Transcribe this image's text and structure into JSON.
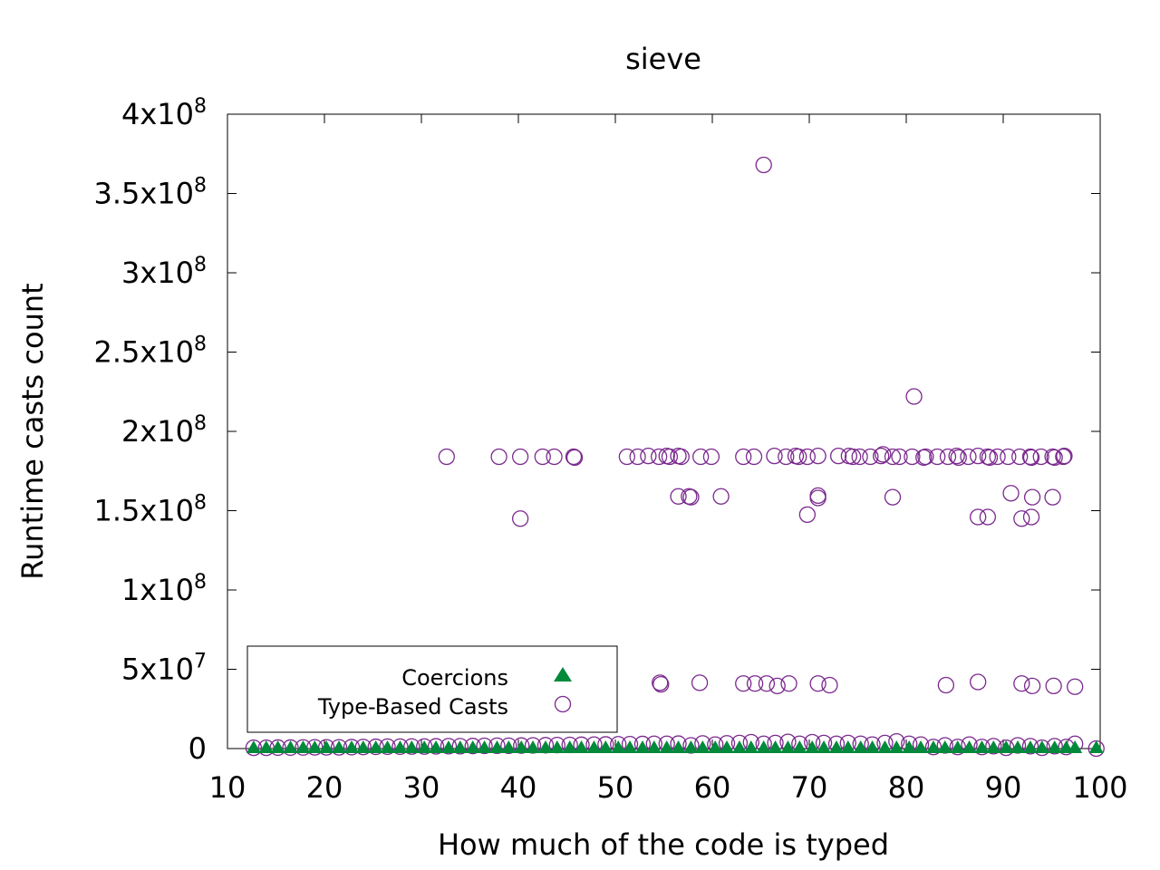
{
  "chart_data": {
    "type": "scatter",
    "title": "sieve",
    "xlabel": "How much of the code is typed",
    "ylabel": "Runtime casts count",
    "xlim": [
      10,
      100
    ],
    "ylim": [
      0,
      400000000
    ],
    "x_ticks": [
      10,
      20,
      30,
      40,
      50,
      60,
      70,
      80,
      90,
      100
    ],
    "y_ticks": [
      {
        "value": 0,
        "base": "0",
        "exp": ""
      },
      {
        "value": 50000000,
        "base": "5x10",
        "exp": "7"
      },
      {
        "value": 100000000,
        "base": "1x10",
        "exp": "8"
      },
      {
        "value": 150000000,
        "base": "1.5x10",
        "exp": "8"
      },
      {
        "value": 200000000,
        "base": "2x10",
        "exp": "8"
      },
      {
        "value": 250000000,
        "base": "2.5x10",
        "exp": "8"
      },
      {
        "value": 300000000,
        "base": "3x10",
        "exp": "8"
      },
      {
        "value": 350000000,
        "base": "3.5x10",
        "exp": "8"
      },
      {
        "value": 400000000,
        "base": "4x10",
        "exp": "8"
      }
    ],
    "grid": false,
    "legend_position": "bottom-left",
    "series": [
      {
        "name": "Coercions",
        "marker": "filled-triangle",
        "color": "#008a3a",
        "points": [
          [
            12.7,
            0
          ],
          [
            14.0,
            0
          ],
          [
            15.2,
            0
          ],
          [
            16.5,
            0
          ],
          [
            17.8,
            0
          ],
          [
            19.0,
            0
          ],
          [
            20.2,
            0
          ],
          [
            21.5,
            0
          ],
          [
            22.8,
            0
          ],
          [
            24.0,
            0
          ],
          [
            25.3,
            0
          ],
          [
            26.5,
            0
          ],
          [
            27.8,
            0
          ],
          [
            29.0,
            0
          ],
          [
            30.3,
            0
          ],
          [
            31.5,
            0
          ],
          [
            32.8,
            0
          ],
          [
            34.0,
            0
          ],
          [
            35.3,
            0
          ],
          [
            36.5,
            0
          ],
          [
            37.8,
            0
          ],
          [
            39.0,
            0
          ],
          [
            40.3,
            0
          ],
          [
            41.5,
            0
          ],
          [
            42.8,
            0
          ],
          [
            44.0,
            0
          ],
          [
            45.3,
            0
          ],
          [
            46.5,
            0
          ],
          [
            47.8,
            0
          ],
          [
            49.0,
            0
          ],
          [
            50.3,
            0
          ],
          [
            51.5,
            0
          ],
          [
            52.8,
            0
          ],
          [
            54.0,
            0
          ],
          [
            55.3,
            0
          ],
          [
            56.5,
            0
          ],
          [
            57.8,
            0
          ],
          [
            59.0,
            0
          ],
          [
            60.3,
            0
          ],
          [
            61.5,
            0
          ],
          [
            62.8,
            0
          ],
          [
            64.0,
            0
          ],
          [
            65.3,
            0
          ],
          [
            66.5,
            0
          ],
          [
            67.8,
            0
          ],
          [
            69.0,
            0
          ],
          [
            70.3,
            0
          ],
          [
            71.5,
            0
          ],
          [
            72.8,
            0
          ],
          [
            74.0,
            0
          ],
          [
            75.3,
            0
          ],
          [
            76.5,
            0
          ],
          [
            77.8,
            0
          ],
          [
            79.0,
            0
          ],
          [
            80.3,
            0
          ],
          [
            81.5,
            0
          ],
          [
            82.8,
            0
          ],
          [
            84.0,
            0
          ],
          [
            85.3,
            0
          ],
          [
            86.5,
            0
          ],
          [
            87.8,
            0
          ],
          [
            89.0,
            0
          ],
          [
            90.3,
            0
          ],
          [
            91.5,
            0
          ],
          [
            92.8,
            0
          ],
          [
            94.0,
            0
          ],
          [
            95.3,
            0
          ],
          [
            96.5,
            0
          ],
          [
            97.4,
            0
          ],
          [
            99.6,
            0
          ]
        ]
      },
      {
        "name": "Type-Based Casts",
        "marker": "open-circle",
        "color": "#7b2a8e",
        "points": [
          [
            32.6,
            184000000
          ],
          [
            38.0,
            184000000
          ],
          [
            40.2,
            184000000
          ],
          [
            42.5,
            184000000
          ],
          [
            43.7,
            184000000
          ],
          [
            45.7,
            184000000
          ],
          [
            45.8,
            183500000
          ],
          [
            51.2,
            184000000
          ],
          [
            52.3,
            184000000
          ],
          [
            53.4,
            184500000
          ],
          [
            54.5,
            184000000
          ],
          [
            55.3,
            184500000
          ],
          [
            55.6,
            184000000
          ],
          [
            56.5,
            184500000
          ],
          [
            56.8,
            184000000
          ],
          [
            58.8,
            184000000
          ],
          [
            59.9,
            184000000
          ],
          [
            63.2,
            184000000
          ],
          [
            64.3,
            184000000
          ],
          [
            66.4,
            184500000
          ],
          [
            67.6,
            184000000
          ],
          [
            68.6,
            184500000
          ],
          [
            68.9,
            184000000
          ],
          [
            69.8,
            184000000
          ],
          [
            70.9,
            184500000
          ],
          [
            73.0,
            184500000
          ],
          [
            74.1,
            184500000
          ],
          [
            74.5,
            184000000
          ],
          [
            75.2,
            184000000
          ],
          [
            76.3,
            184000000
          ],
          [
            77.4,
            184500000
          ],
          [
            77.6,
            185500000
          ],
          [
            78.6,
            184000000
          ],
          [
            79.3,
            184000000
          ],
          [
            80.6,
            184000000
          ],
          [
            81.8,
            183500000
          ],
          [
            82.0,
            184000000
          ],
          [
            83.2,
            184000000
          ],
          [
            84.3,
            184000000
          ],
          [
            85.2,
            184500000
          ],
          [
            85.4,
            183500000
          ],
          [
            86.4,
            184000000
          ],
          [
            87.4,
            184500000
          ],
          [
            88.4,
            184000000
          ],
          [
            88.6,
            183500000
          ],
          [
            89.4,
            184000000
          ],
          [
            90.5,
            184000000
          ],
          [
            91.7,
            184000000
          ],
          [
            92.8,
            184000000
          ],
          [
            92.9,
            183500000
          ],
          [
            93.9,
            184000000
          ],
          [
            95.1,
            184000000
          ],
          [
            95.3,
            183500000
          ],
          [
            96.2,
            184000000
          ],
          [
            96.3,
            184500000
          ],
          [
            40.2,
            145000000
          ],
          [
            56.5,
            159000000
          ],
          [
            57.6,
            159000000
          ],
          [
            57.8,
            158500000
          ],
          [
            60.9,
            159000000
          ],
          [
            69.8,
            147500000
          ],
          [
            70.9,
            159500000
          ],
          [
            70.9,
            158000000
          ],
          [
            78.6,
            158500000
          ],
          [
            87.4,
            146000000
          ],
          [
            88.4,
            146000000
          ],
          [
            90.8,
            161000000
          ],
          [
            91.9,
            145000000
          ],
          [
            92.9,
            146000000
          ],
          [
            93.0,
            158500000
          ],
          [
            95.1,
            158500000
          ],
          [
            65.3,
            368000000
          ],
          [
            80.8,
            222000000
          ],
          [
            54.6,
            41500000
          ],
          [
            54.7,
            40500000
          ],
          [
            58.7,
            41500000
          ],
          [
            63.2,
            41000000
          ],
          [
            64.4,
            41000000
          ],
          [
            65.6,
            41000000
          ],
          [
            66.7,
            39500000
          ],
          [
            67.9,
            41000000
          ],
          [
            70.9,
            41000000
          ],
          [
            72.1,
            40000000
          ],
          [
            84.1,
            40000000
          ],
          [
            87.4,
            42000000
          ],
          [
            91.9,
            41000000
          ],
          [
            93.0,
            39500000
          ],
          [
            95.2,
            39500000
          ],
          [
            97.4,
            39000000
          ],
          [
            12.7,
            500000
          ],
          [
            14.0,
            500000
          ],
          [
            15.2,
            600000
          ],
          [
            16.5,
            600000
          ],
          [
            17.8,
            700000
          ],
          [
            19.0,
            800000
          ],
          [
            20.2,
            800000
          ],
          [
            21.5,
            800000
          ],
          [
            22.8,
            900000
          ],
          [
            24.0,
            1000000
          ],
          [
            25.3,
            1100000
          ],
          [
            26.5,
            1200000
          ],
          [
            27.8,
            1200000
          ],
          [
            29.0,
            1300000
          ],
          [
            30.3,
            1300000
          ],
          [
            31.5,
            1400000
          ],
          [
            32.8,
            1500000
          ],
          [
            34.0,
            1500000
          ],
          [
            35.3,
            1600000
          ],
          [
            36.5,
            1700000
          ],
          [
            37.8,
            1800000
          ],
          [
            39.0,
            1800000
          ],
          [
            40.3,
            1900000
          ],
          [
            41.5,
            2000000
          ],
          [
            42.8,
            2100000
          ],
          [
            44.0,
            2200000
          ],
          [
            45.3,
            2300000
          ],
          [
            46.5,
            2400000
          ],
          [
            47.8,
            2500000
          ],
          [
            49.0,
            2600000
          ],
          [
            50.3,
            2700000
          ],
          [
            51.5,
            2800000
          ],
          [
            52.8,
            2900000
          ],
          [
            54.0,
            3000000
          ],
          [
            55.3,
            3000000
          ],
          [
            56.5,
            3100000
          ],
          [
            57.8,
            2000000
          ],
          [
            59.0,
            3200000
          ],
          [
            60.3,
            2500000
          ],
          [
            61.5,
            3300000
          ],
          [
            62.8,
            3500000
          ],
          [
            64.0,
            4000000
          ],
          [
            65.3,
            3000000
          ],
          [
            66.5,
            3500000
          ],
          [
            67.8,
            4200000
          ],
          [
            69.0,
            3000000
          ],
          [
            70.3,
            4000000
          ],
          [
            71.5,
            3500000
          ],
          [
            72.8,
            3000000
          ],
          [
            74.0,
            3500000
          ],
          [
            75.3,
            3000000
          ],
          [
            76.5,
            2500000
          ],
          [
            77.8,
            3500000
          ],
          [
            79.0,
            4500000
          ],
          [
            80.3,
            3000000
          ],
          [
            81.5,
            2500000
          ],
          [
            82.8,
            1000000
          ],
          [
            84.0,
            2000000
          ],
          [
            85.3,
            1000000
          ],
          [
            86.5,
            2500000
          ],
          [
            87.8,
            1000000
          ],
          [
            89.0,
            1500000
          ],
          [
            90.3,
            500000
          ],
          [
            91.5,
            2000000
          ],
          [
            92.8,
            1500000
          ],
          [
            94.0,
            500000
          ],
          [
            95.3,
            1500000
          ],
          [
            96.5,
            1000000
          ],
          [
            97.4,
            3000000
          ],
          [
            99.6,
            0
          ]
        ]
      }
    ]
  }
}
